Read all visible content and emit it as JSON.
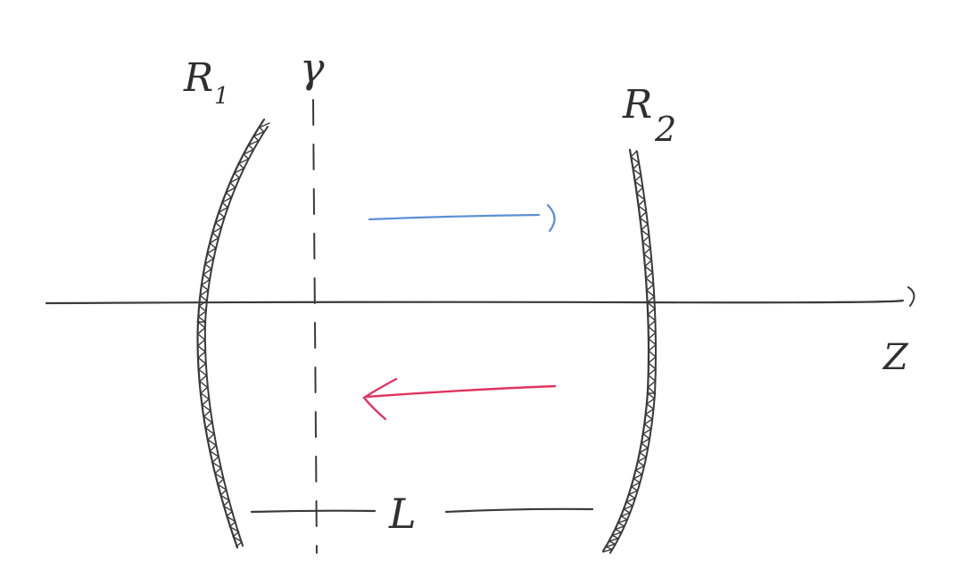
{
  "labels": {
    "mirror_left": "R",
    "mirror_left_sub": "1",
    "mirror_right": "R",
    "mirror_right_sub": "2",
    "reference_plane": "γ",
    "optical_axis": "Z",
    "separation": "L"
  },
  "colors": {
    "ink": "#3a3a3a",
    "forward_beam": "#5b8fd6",
    "backward_beam": "#e0345f"
  }
}
